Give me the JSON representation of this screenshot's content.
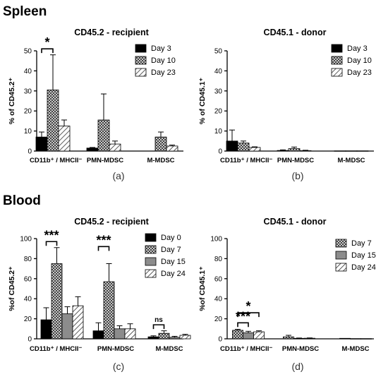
{
  "sections": {
    "top": "Spleen",
    "bottom": "Blood"
  },
  "chart_data": [
    {
      "id": "a",
      "type": "bar",
      "title": "CD45.2 - recipient",
      "caption": "(a)",
      "ylabel": "% of CD45.2⁺",
      "ylim": [
        0,
        50
      ],
      "yticks": [
        0,
        10,
        20,
        30,
        40,
        50
      ],
      "categories": [
        "CD11b⁺ / MHCII⁻",
        "PMN-MDSC",
        "M-MDSC"
      ],
      "series": [
        {
          "name": "Day 3",
          "pattern": "black",
          "values": [
            7,
            1.5,
            null
          ],
          "errors": [
            2.5,
            0.3,
            null
          ]
        },
        {
          "name": "Day 10",
          "pattern": "dots",
          "values": [
            30.5,
            15.5,
            7
          ],
          "errors": [
            17.5,
            13,
            2.5
          ]
        },
        {
          "name": "Day 23",
          "pattern": "hatch",
          "values": [
            12.5,
            3.5,
            2.5
          ],
          "errors": [
            3,
            1.5,
            0.5
          ]
        }
      ],
      "annotations": [
        {
          "text": "*",
          "from": [
            0,
            0
          ],
          "to": [
            0,
            1
          ],
          "y": 51
        }
      ]
    },
    {
      "id": "b",
      "type": "bar",
      "title": "CD45.1 - donor",
      "caption": "(b)",
      "ylabel": "% of CD45.1⁺",
      "ylim": [
        0,
        50
      ],
      "yticks": [
        0,
        10,
        20,
        30,
        40,
        50
      ],
      "categories": [
        "CD11b⁺ / MHCII⁻",
        "PMN-MDSC",
        "M-MDSC"
      ],
      "series": [
        {
          "name": "Day 3",
          "pattern": "black",
          "values": [
            5,
            0.3,
            0.1
          ],
          "errors": [
            5.5,
            0.3,
            0
          ]
        },
        {
          "name": "Day 10",
          "pattern": "dots",
          "values": [
            4,
            1.2,
            0.1
          ],
          "errors": [
            1,
            0.8,
            0
          ]
        },
        {
          "name": "Day 23",
          "pattern": "hatch",
          "values": [
            1.8,
            0.2,
            0.1
          ],
          "errors": [
            0.3,
            0.2,
            0
          ]
        }
      ],
      "annotations": []
    },
    {
      "id": "c",
      "type": "bar",
      "title": "CD45.2 - recipient",
      "caption": "(c)",
      "ylabel": "%of CD45.2⁺",
      "ylim": [
        0,
        100
      ],
      "yticks": [
        0,
        20,
        40,
        60,
        80,
        100
      ],
      "categories": [
        "CD11b⁺ / MHCII⁻",
        "PMN-MDSC",
        "M-MDSC"
      ],
      "series": [
        {
          "name": "Day 0",
          "pattern": "black",
          "values": [
            19,
            8,
            2
          ],
          "errors": [
            12,
            8,
            1
          ]
        },
        {
          "name": "Day 7",
          "pattern": "dots",
          "values": [
            75,
            57,
            5.5
          ],
          "errors": [
            16,
            18,
            2.5
          ]
        },
        {
          "name": "Day 15",
          "pattern": "gray",
          "values": [
            25,
            10,
            1.5
          ],
          "errors": [
            7,
            3,
            1
          ]
        },
        {
          "name": "Day 24",
          "pattern": "hatch",
          "values": [
            33,
            10,
            3.5
          ],
          "errors": [
            9,
            5,
            1
          ]
        }
      ],
      "annotations": [
        {
          "text": "***",
          "from": [
            0,
            0
          ],
          "to": [
            0,
            1
          ],
          "y": 97
        },
        {
          "text": "***",
          "from": [
            1,
            0
          ],
          "to": [
            1,
            1
          ],
          "y": 92
        },
        {
          "text": "ns",
          "from": [
            2,
            0
          ],
          "to": [
            2,
            1
          ],
          "y": 14
        }
      ]
    },
    {
      "id": "d",
      "type": "bar",
      "title": "CD45.1 - donor",
      "caption": "(d)",
      "ylabel": "%of CD45.1⁺",
      "ylim": [
        0,
        100
      ],
      "yticks": [
        0,
        20,
        40,
        60,
        80,
        100
      ],
      "categories": [
        "CD11b⁺ / MHCII⁻",
        "PMN-MDSC",
        "M-MDSC"
      ],
      "series": [
        {
          "name": "Day 7",
          "pattern": "dots",
          "values": [
            8.5,
            2,
            0.5
          ],
          "errors": [
            1,
            1.5,
            0
          ]
        },
        {
          "name": "Day 15",
          "pattern": "gray",
          "values": [
            6,
            0.5,
            0.2
          ],
          "errors": [
            1.5,
            0.3,
            0
          ]
        },
        {
          "name": "Day 24",
          "pattern": "hatch",
          "values": [
            7,
            0.6,
            0.2
          ],
          "errors": [
            1,
            0.3,
            0
          ]
        }
      ],
      "annotations": [
        {
          "text": "***",
          "from": [
            0,
            0
          ],
          "to": [
            0,
            1
          ],
          "y": 16
        },
        {
          "text": "*",
          "from": [
            0,
            0
          ],
          "to": [
            0,
            2
          ],
          "y": 26
        }
      ]
    }
  ]
}
